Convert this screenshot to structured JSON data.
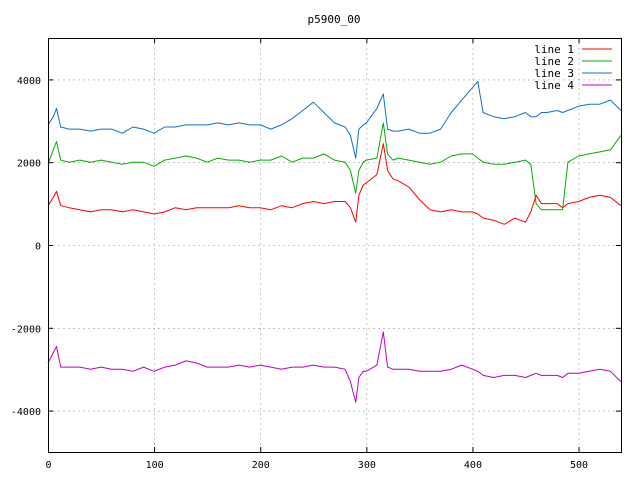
{
  "chart_data": {
    "type": "line",
    "title": "p5900_00",
    "xlabel": "",
    "ylabel": "",
    "xlim": [
      0,
      540
    ],
    "ylim": [
      -5000,
      5000
    ],
    "x_ticks": [
      0,
      100,
      200,
      300,
      400,
      500
    ],
    "y_ticks": [
      4000,
      2000,
      0,
      -2000,
      -4000
    ],
    "x_tick_labels": [
      "0",
      "100",
      "200",
      "300",
      "400",
      "500"
    ],
    "y_tick_labels": [
      "4000",
      "2000",
      "0",
      "-2000",
      "-4000"
    ],
    "grid": true,
    "legend_position": "top-right",
    "x": [
      0,
      5,
      8,
      12,
      20,
      30,
      40,
      50,
      60,
      70,
      80,
      90,
      100,
      110,
      120,
      130,
      140,
      150,
      160,
      170,
      180,
      190,
      200,
      210,
      220,
      230,
      240,
      250,
      260,
      270,
      280,
      285,
      290,
      293,
      297,
      300,
      310,
      316,
      320,
      325,
      330,
      340,
      350,
      360,
      370,
      380,
      390,
      400,
      405,
      410,
      420,
      430,
      440,
      450,
      455,
      460,
      465,
      470,
      480,
      485,
      490,
      500,
      510,
      520,
      530,
      540
    ],
    "series": [
      {
        "name": "line 1",
        "color": "#ff0000",
        "values": [
          950,
          1150,
          1300,
          950,
          900,
          850,
          800,
          850,
          850,
          800,
          850,
          800,
          750,
          800,
          900,
          850,
          900,
          900,
          900,
          900,
          950,
          900,
          900,
          850,
          950,
          900,
          1000,
          1050,
          1000,
          1050,
          1050,
          900,
          550,
          1200,
          1450,
          1500,
          1700,
          2450,
          1800,
          1600,
          1550,
          1400,
          1100,
          850,
          800,
          850,
          800,
          800,
          750,
          650,
          600,
          500,
          650,
          550,
          800,
          1200,
          1000,
          1000,
          1000,
          900,
          1000,
          1050,
          1150,
          1200,
          1150,
          950
        ]
      },
      {
        "name": "line 2",
        "color": "#00b000",
        "values": [
          1950,
          2300,
          2500,
          2050,
          2000,
          2050,
          2000,
          2050,
          2000,
          1950,
          2000,
          2000,
          1900,
          2050,
          2100,
          2150,
          2100,
          2000,
          2100,
          2050,
          2050,
          2000,
          2050,
          2050,
          2150,
          2000,
          2100,
          2100,
          2200,
          2050,
          2000,
          1800,
          1250,
          1800,
          2000,
          2050,
          2100,
          2950,
          2200,
          2050,
          2100,
          2050,
          2000,
          1950,
          2000,
          2150,
          2200,
          2200,
          2100,
          2000,
          1950,
          1950,
          2000,
          2050,
          1950,
          1000,
          850,
          850,
          850,
          850,
          2000,
          2150,
          2200,
          2250,
          2300,
          2650
        ]
      },
      {
        "name": "line 3",
        "color": "#1070d0",
        "values": [
          2900,
          3100,
          3300,
          2850,
          2800,
          2800,
          2750,
          2800,
          2800,
          2700,
          2850,
          2800,
          2700,
          2850,
          2850,
          2900,
          2900,
          2900,
          2950,
          2900,
          2950,
          2900,
          2900,
          2800,
          2900,
          3050,
          3250,
          3450,
          3200,
          2950,
          2850,
          2650,
          2100,
          2800,
          2900,
          2950,
          3300,
          3650,
          2800,
          2750,
          2750,
          2800,
          2700,
          2700,
          2800,
          3200,
          3500,
          3800,
          3950,
          3200,
          3100,
          3050,
          3100,
          3200,
          3100,
          3100,
          3200,
          3200,
          3250,
          3200,
          3250,
          3350,
          3400,
          3400,
          3500,
          3250
        ]
      },
      {
        "name": "line 4",
        "color": "#c000c0",
        "values": [
          -2850,
          -2600,
          -2450,
          -2950,
          -2950,
          -2950,
          -3000,
          -2950,
          -3000,
          -3000,
          -3050,
          -2950,
          -3050,
          -2950,
          -2900,
          -2800,
          -2850,
          -2950,
          -2950,
          -2950,
          -2900,
          -2950,
          -2900,
          -2950,
          -3000,
          -2950,
          -2950,
          -2900,
          -2950,
          -2950,
          -3000,
          -3300,
          -3800,
          -3200,
          -3050,
          -3050,
          -2900,
          -2100,
          -2950,
          -3000,
          -3000,
          -3000,
          -3050,
          -3050,
          -3050,
          -3000,
          -2900,
          -3000,
          -3050,
          -3150,
          -3200,
          -3150,
          -3150,
          -3200,
          -3150,
          -3100,
          -3150,
          -3150,
          -3150,
          -3200,
          -3100,
          -3100,
          -3050,
          -3000,
          -3050,
          -3300
        ]
      }
    ]
  }
}
